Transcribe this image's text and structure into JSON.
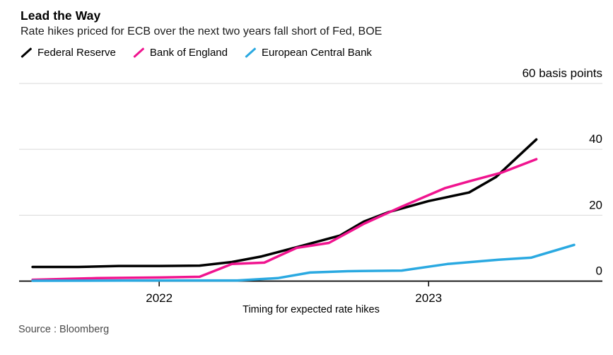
{
  "header": {
    "title": "Lead the Way",
    "subtitle": "Rate hikes priced for ECB over the next two years fall short of Fed, BOE"
  },
  "legend": {
    "items": [
      {
        "label": "Federal Reserve",
        "color": "#000000"
      },
      {
        "label": "Bank of England",
        "color": "#f0148f"
      },
      {
        "label": "European Central Bank",
        "color": "#2aa9e1"
      }
    ]
  },
  "colors": {
    "grid": "#d9d9d9",
    "axis": "#000000",
    "background": "#ffffff",
    "muted_text": "#4a4a4a"
  },
  "chart_data": {
    "type": "line",
    "unit": "basis points",
    "x_axis": {
      "label": "Timing for expected rate hikes",
      "range": [
        2021.48,
        2023.645
      ],
      "ticks": [
        {
          "label": "2022",
          "value": 2022
        },
        {
          "label": "2023",
          "value": 2023
        }
      ]
    },
    "y_axis": {
      "range": [
        0,
        60
      ],
      "ticks": [
        {
          "label": "0",
          "value": 0
        },
        {
          "label": "20",
          "value": 20
        },
        {
          "label": "40",
          "value": 40
        },
        {
          "label": "60 basis points",
          "value": 60
        }
      ]
    },
    "series": [
      {
        "name": "Federal Reserve",
        "color": "#000000",
        "points": [
          [
            2021.53,
            4.3
          ],
          [
            2021.7,
            4.3
          ],
          [
            2021.85,
            4.6
          ],
          [
            2022.0,
            4.6
          ],
          [
            2022.15,
            4.7
          ],
          [
            2022.27,
            5.8
          ],
          [
            2022.38,
            7.5
          ],
          [
            2022.52,
            10.5
          ],
          [
            2022.67,
            13.8
          ],
          [
            2022.76,
            18.1
          ],
          [
            2022.85,
            20.9
          ],
          [
            2023.0,
            24.3
          ],
          [
            2023.15,
            26.9
          ],
          [
            2023.25,
            31.6
          ],
          [
            2023.4,
            43.0
          ]
        ]
      },
      {
        "name": "Bank of England",
        "color": "#f0148f",
        "points": [
          [
            2021.53,
            0.4
          ],
          [
            2021.77,
            0.9
          ],
          [
            2022.0,
            1.1
          ],
          [
            2022.15,
            1.3
          ],
          [
            2022.27,
            5.2
          ],
          [
            2022.39,
            5.6
          ],
          [
            2022.51,
            10.1
          ],
          [
            2022.63,
            11.6
          ],
          [
            2022.76,
            17.4
          ],
          [
            2022.9,
            22.6
          ],
          [
            2023.06,
            28.2
          ],
          [
            2023.15,
            30.3
          ],
          [
            2023.27,
            32.9
          ],
          [
            2023.4,
            37.0
          ]
        ]
      },
      {
        "name": "European Central Bank",
        "color": "#2aa9e1",
        "points": [
          [
            2021.53,
            0.1
          ],
          [
            2022.0,
            0.2
          ],
          [
            2022.29,
            0.2
          ],
          [
            2022.44,
            0.9
          ],
          [
            2022.56,
            2.6
          ],
          [
            2022.7,
            3.0
          ],
          [
            2022.9,
            3.2
          ],
          [
            2023.07,
            5.2
          ],
          [
            2023.26,
            6.5
          ],
          [
            2023.38,
            7.1
          ],
          [
            2023.54,
            11.0
          ]
        ]
      }
    ]
  },
  "footer": {
    "source": "Source : Bloomberg"
  }
}
